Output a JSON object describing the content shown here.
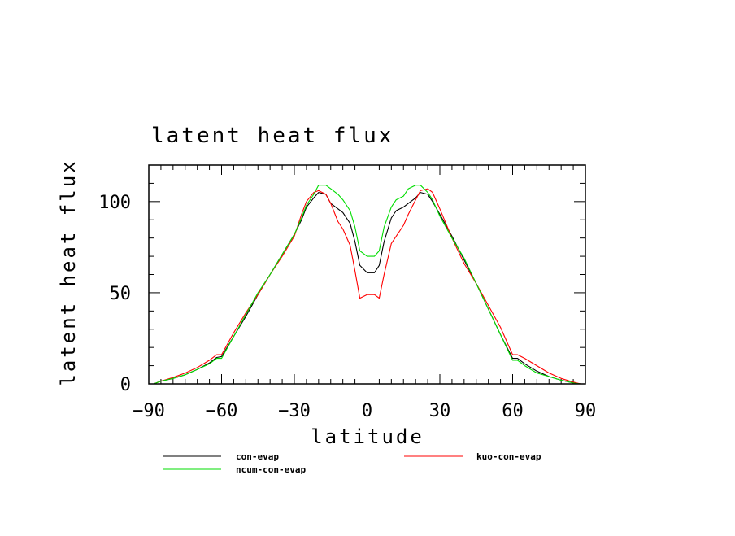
{
  "chart_data": {
    "type": "line",
    "title": "latent heat flux",
    "xlabel": "latitude",
    "ylabel": "latent heat flux",
    "xlim": [
      -90,
      90
    ],
    "ylim": [
      0,
      120
    ],
    "x_ticks": [
      -90,
      -60,
      -30,
      0,
      30,
      60,
      90
    ],
    "x_tick_labels": [
      "−90",
      "−60",
      "−30",
      "0",
      "30",
      "60",
      "90"
    ],
    "y_ticks": [
      0,
      50,
      100
    ],
    "y_tick_labels": [
      "0",
      "50",
      "100"
    ],
    "grid": false,
    "legend_position": "bottom",
    "x": [
      -88,
      -85,
      -80,
      -75,
      -70,
      -65,
      -62,
      -60,
      -55,
      -50,
      -45,
      -40,
      -35,
      -30,
      -27,
      -25,
      -22,
      -20,
      -17,
      -15,
      -12,
      -10,
      -7,
      -5,
      -3,
      0,
      3,
      5,
      7,
      10,
      12,
      15,
      17,
      20,
      22,
      25,
      27,
      30,
      35,
      40,
      45,
      50,
      55,
      60,
      62,
      65,
      70,
      75,
      80,
      85,
      88
    ],
    "series": [
      {
        "name": "con-evap",
        "color": "#000000",
        "values": [
          0,
          1.5,
          3,
          5,
          8,
          11.5,
          14.5,
          15,
          26,
          37,
          49,
          60,
          71,
          82,
          90,
          97,
          102,
          105,
          104,
          99,
          96,
          94,
          88,
          78,
          65,
          61,
          61,
          65,
          78,
          91,
          95,
          97,
          99,
          102,
          105,
          104,
          100,
          93,
          81,
          68,
          55,
          41,
          27,
          14,
          14,
          11,
          7,
          4,
          2,
          0.5,
          0
        ]
      },
      {
        "name": "kuo-con-evap",
        "color": "#ff0000",
        "values": [
          0,
          1.5,
          3.5,
          6,
          9,
          13,
          16,
          16,
          28,
          39,
          49,
          60,
          70,
          81,
          93,
          100,
          105,
          106,
          104,
          99,
          89,
          85,
          76,
          62,
          47,
          49,
          49,
          47,
          60,
          77,
          81,
          87,
          93,
          101,
          106,
          107,
          105,
          96,
          80,
          66,
          55,
          43,
          31,
          16,
          16,
          14,
          10,
          6,
          3,
          1,
          0
        ]
      },
      {
        "name": "ncum-con-evap",
        "color": "#00dd00",
        "values": [
          0,
          1.5,
          3,
          5,
          8,
          11,
          14,
          14,
          26,
          38,
          50,
          60,
          71,
          82,
          91,
          98,
          104,
          109,
          109,
          107,
          104,
          101,
          95,
          86,
          73,
          70,
          70,
          73,
          86,
          97,
          101,
          103,
          107,
          109,
          109,
          105,
          101,
          92,
          80,
          69,
          55,
          41,
          27,
          13,
          13,
          10,
          6,
          4,
          2,
          0.5,
          0
        ]
      }
    ]
  }
}
